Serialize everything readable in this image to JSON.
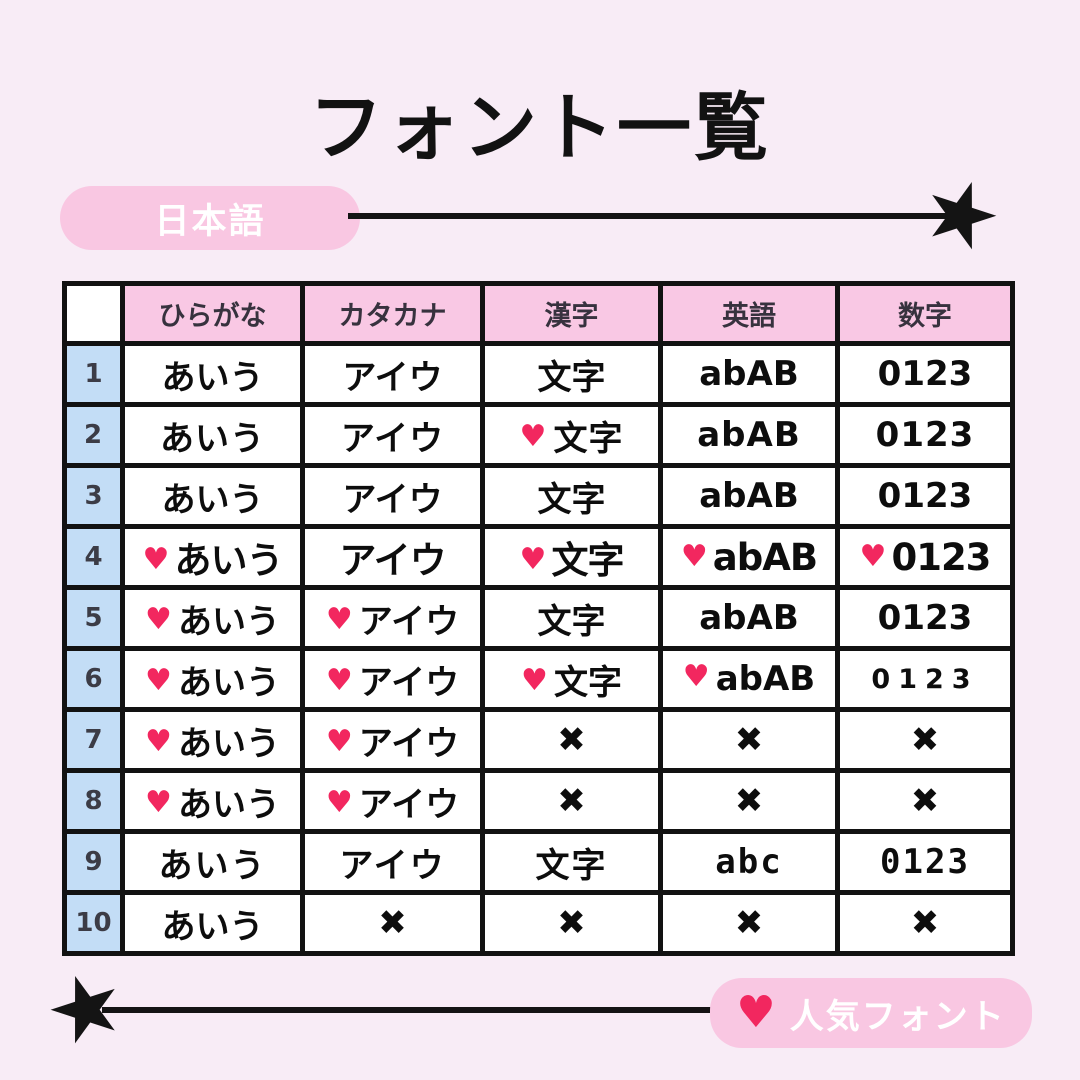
{
  "title": "フォント一覧",
  "top_banner": {
    "label": "日本語"
  },
  "bottom_banner": {
    "label": "人気フォント",
    "heart_icon": "♥"
  },
  "icons": {
    "heart": "♥",
    "cross": "✖",
    "star": "★"
  },
  "colors": {
    "background": "#f8ecf6",
    "badge_pink": "#f9c7e2",
    "header_pink": "#f9c8e4",
    "number_blue": "#c3ddf6",
    "heart_red": "#f2275f",
    "line_black": "#141414"
  },
  "table": {
    "columns": [
      "",
      "ひらがな",
      "カタカナ",
      "漢字",
      "英語",
      "数字"
    ],
    "rows": [
      {
        "num": "1",
        "cells": [
          {
            "text": "あいう",
            "heart": false
          },
          {
            "text": "アイウ",
            "heart": false
          },
          {
            "text": "文字",
            "heart": false
          },
          {
            "text": "abAB",
            "heart": false
          },
          {
            "text": "0123",
            "heart": false
          }
        ]
      },
      {
        "num": "2",
        "cells": [
          {
            "text": "あいう",
            "heart": false
          },
          {
            "text": "アイウ",
            "heart": false
          },
          {
            "text": "文字",
            "heart": true
          },
          {
            "text": "abAB",
            "heart": false
          },
          {
            "text": "0123",
            "heart": false
          }
        ]
      },
      {
        "num": "3",
        "cells": [
          {
            "text": "あいう",
            "heart": false
          },
          {
            "text": "アイウ",
            "heart": false
          },
          {
            "text": "文字",
            "heart": false
          },
          {
            "text": "abAB",
            "heart": false
          },
          {
            "text": "0123",
            "heart": false
          }
        ]
      },
      {
        "num": "4",
        "cells": [
          {
            "text": "あいう",
            "heart": true
          },
          {
            "text": "アイウ",
            "heart": false
          },
          {
            "text": "文字",
            "heart": true
          },
          {
            "text": "abAB",
            "heart": true
          },
          {
            "text": "0123",
            "heart": true
          }
        ]
      },
      {
        "num": "5",
        "cells": [
          {
            "text": "あいう",
            "heart": true
          },
          {
            "text": "アイウ",
            "heart": true
          },
          {
            "text": "文字",
            "heart": false
          },
          {
            "text": "abAB",
            "heart": false
          },
          {
            "text": "0123",
            "heart": false
          }
        ]
      },
      {
        "num": "6",
        "cells": [
          {
            "text": "あいう",
            "heart": true
          },
          {
            "text": "アイウ",
            "heart": true
          },
          {
            "text": "文字",
            "heart": true
          },
          {
            "text": "abAB",
            "heart": true
          },
          {
            "text": "0123",
            "heart": false
          }
        ]
      },
      {
        "num": "7",
        "cells": [
          {
            "text": "あいう",
            "heart": true
          },
          {
            "text": "アイウ",
            "heart": true
          },
          {
            "text": "✖",
            "heart": false
          },
          {
            "text": "✖",
            "heart": false
          },
          {
            "text": "✖",
            "heart": false
          }
        ]
      },
      {
        "num": "8",
        "cells": [
          {
            "text": "あいう",
            "heart": true
          },
          {
            "text": "アイウ",
            "heart": true
          },
          {
            "text": "✖",
            "heart": false
          },
          {
            "text": "✖",
            "heart": false
          },
          {
            "text": "✖",
            "heart": false
          }
        ]
      },
      {
        "num": "9",
        "cells": [
          {
            "text": "あいう",
            "heart": false
          },
          {
            "text": "アイウ",
            "heart": false
          },
          {
            "text": "文字",
            "heart": false
          },
          {
            "text": "abc",
            "heart": false
          },
          {
            "text": "0123",
            "heart": false
          }
        ]
      },
      {
        "num": "10",
        "cells": [
          {
            "text": "あいう",
            "heart": false
          },
          {
            "text": "✖",
            "heart": false
          },
          {
            "text": "✖",
            "heart": false
          },
          {
            "text": "✖",
            "heart": false
          },
          {
            "text": "✖",
            "heart": false
          }
        ]
      }
    ]
  }
}
